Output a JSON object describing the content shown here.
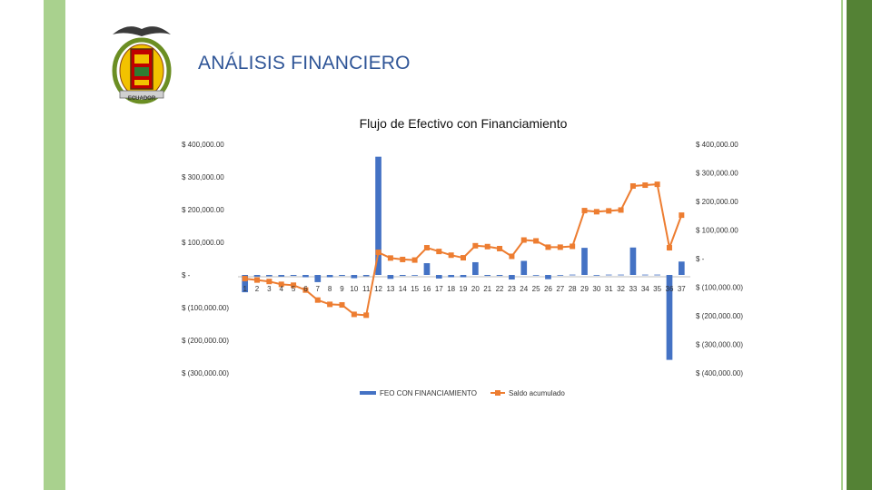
{
  "header": {
    "title": "ANÁLISIS FINANCIERO",
    "emblem_caption": "ECUADOR"
  },
  "colors": {
    "bar": "#4472c4",
    "line": "#ed7d31",
    "title": "#2f5597",
    "band_light": "#a9d18e",
    "band_dark": "#548235"
  },
  "chart_data": {
    "type": "bar",
    "title": "Flujo de Efectivo con Financiamiento",
    "categories": [
      "1",
      "2",
      "3",
      "4",
      "5",
      "6",
      "7",
      "8",
      "9",
      "10",
      "11",
      "12",
      "13",
      "14",
      "15",
      "16",
      "17",
      "18",
      "19",
      "20",
      "21",
      "22",
      "23",
      "24",
      "25",
      "26",
      "27",
      "28",
      "29",
      "30",
      "31",
      "32",
      "33",
      "34",
      "35",
      "36",
      "37"
    ],
    "series": [
      {
        "name": "FEO CON FINANCIAMIENTO",
        "kind": "bar",
        "axis": "left",
        "values": [
          -53000,
          -5000,
          -4000,
          -5000,
          -3000,
          -7000,
          -22000,
          -7000,
          -3000,
          -10000,
          -4000,
          362000,
          -12000,
          -3000,
          -1000,
          36000,
          -11000,
          -7000,
          -7000,
          39000,
          -3000,
          -3000,
          -14000,
          43000,
          -1000,
          -13000,
          -1000,
          1000,
          83000,
          -2000,
          1000,
          1000,
          84000,
          1000,
          1000,
          -260000,
          41000
        ]
      },
      {
        "name": "Saldo acumulado",
        "kind": "line",
        "axis": "right",
        "values": [
          -70000,
          -75000,
          -80000,
          -90000,
          -93000,
          -110000,
          -145000,
          -160000,
          -162000,
          -195000,
          -198000,
          22000,
          2000,
          -3000,
          -5000,
          38000,
          25000,
          12000,
          3000,
          45000,
          42000,
          35000,
          8000,
          65000,
          62000,
          40000,
          40000,
          43000,
          168000,
          164000,
          167000,
          170000,
          254000,
          257000,
          260000,
          38000,
          152000
        ]
      }
    ],
    "y_left": {
      "ylim": [
        -300000,
        400000
      ],
      "ticks": [
        400000,
        300000,
        200000,
        100000,
        0,
        -100000,
        -200000,
        -300000
      ],
      "tick_labels": [
        "$ 400,000.00",
        "$ 300,000.00",
        "$ 200,000.00",
        "$ 100,000.00",
        "$ -",
        "$ (100,000.00)",
        "$ (200,000.00)",
        "$ (300,000.00)"
      ]
    },
    "y_right": {
      "ylim": [
        -400000,
        400000
      ],
      "ticks": [
        400000,
        300000,
        200000,
        100000,
        0,
        -100000,
        -200000,
        -300000,
        -400000
      ],
      "tick_labels": [
        "$ 400,000.00",
        "$ 300,000.00",
        "$ 200,000.00",
        "$ 100,000.00",
        "$ -",
        "$ (100,000.00)",
        "$ (200,000.00)",
        "$ (300,000.00)",
        "$ (400,000.00)"
      ]
    },
    "grid": false,
    "legend_position": "bottom"
  }
}
